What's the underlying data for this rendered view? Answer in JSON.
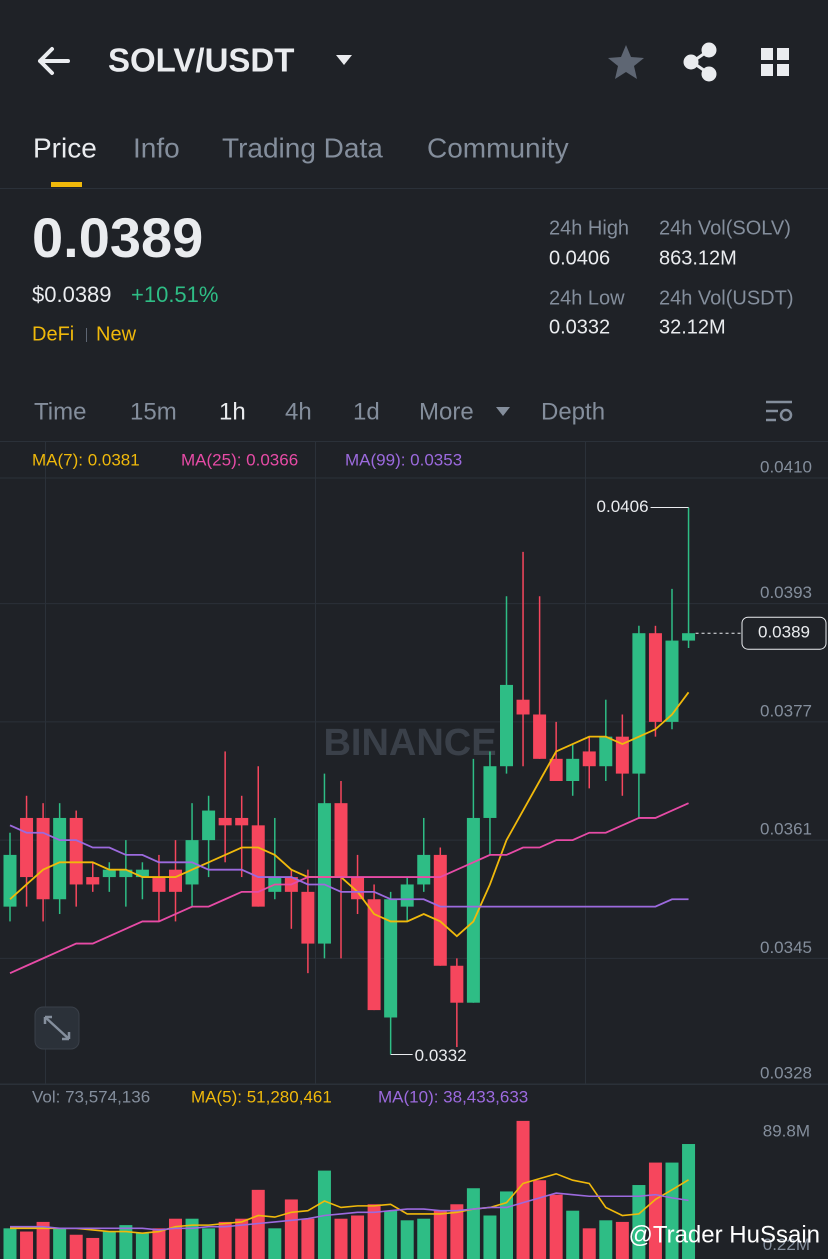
{
  "header": {
    "title": "SOLV/USDT"
  },
  "tabs": [
    "Price",
    "Info",
    "Trading Data",
    "Community"
  ],
  "price": {
    "last": "0.0389",
    "usd": "$0.0389",
    "change": "+10.51%",
    "tags": [
      "DeFi",
      "New"
    ]
  },
  "stats": [
    {
      "label": "24h High",
      "value": "0.0406"
    },
    {
      "label": "24h Vol(SOLV)",
      "value": "863.12M"
    },
    {
      "label": "24h Low",
      "value": "0.0332"
    },
    {
      "label": "24h Vol(USDT)",
      "value": "32.12M"
    }
  ],
  "intervals": [
    "Time",
    "15m",
    "1h",
    "4h",
    "1d",
    "More",
    "Depth"
  ],
  "logo_watermark": "BINANCE",
  "watermark": "@Trader HuSsain",
  "chart_data": [
    {
      "type": "candlestick",
      "up_color": "#2ebd85",
      "down_color": "#f6465d",
      "open": [
        0.0352,
        0.0364,
        0.0364,
        0.0353,
        0.0364,
        0.0356,
        0.0356,
        0.0356,
        0.0356,
        0.0356,
        0.0357,
        0.0355,
        0.0361,
        0.0364,
        0.0364,
        0.0363,
        0.0354,
        0.0356,
        0.0354,
        0.0347,
        0.0366,
        0.0356,
        0.0353,
        0.0337,
        0.0352,
        0.0355,
        0.0359,
        0.0344,
        0.0339,
        0.0364,
        0.0371,
        0.038,
        0.0378,
        0.0372,
        0.0369,
        0.0373,
        0.0371,
        0.0375,
        0.037,
        0.0389,
        0.0377,
        0.0388
      ],
      "high": [
        0.0362,
        0.0367,
        0.0366,
        0.0366,
        0.0365,
        0.0358,
        0.0358,
        0.0361,
        0.0358,
        0.0359,
        0.0361,
        0.0366,
        0.0367,
        0.0373,
        0.0367,
        0.0371,
        0.0364,
        0.0357,
        0.0357,
        0.037,
        0.0369,
        0.0359,
        0.0355,
        0.0354,
        0.0356,
        0.0364,
        0.036,
        0.0345,
        0.0372,
        0.0373,
        0.0394,
        0.04,
        0.0394,
        0.0377,
        0.0374,
        0.0375,
        0.038,
        0.0378,
        0.039,
        0.039,
        0.0395,
        0.0406
      ],
      "low": [
        0.035,
        0.0352,
        0.035,
        0.0351,
        0.0352,
        0.0354,
        0.0354,
        0.0352,
        0.0353,
        0.035,
        0.035,
        0.0352,
        0.0356,
        0.0358,
        0.0356,
        0.0352,
        0.0353,
        0.0349,
        0.0343,
        0.0345,
        0.0345,
        0.0351,
        0.0338,
        0.0332,
        0.035,
        0.0354,
        0.0344,
        0.0333,
        0.0339,
        0.0359,
        0.037,
        0.0371,
        0.0372,
        0.0369,
        0.0367,
        0.0368,
        0.0369,
        0.0367,
        0.0364,
        0.0375,
        0.0376,
        0.0387
      ],
      "close": [
        0.0359,
        0.0356,
        0.0353,
        0.0364,
        0.0355,
        0.0355,
        0.0357,
        0.0357,
        0.0357,
        0.0354,
        0.0354,
        0.0361,
        0.0365,
        0.0363,
        0.0363,
        0.0352,
        0.0356,
        0.0354,
        0.0347,
        0.0366,
        0.0356,
        0.0353,
        0.0338,
        0.0353,
        0.0355,
        0.0359,
        0.0344,
        0.0339,
        0.0364,
        0.0371,
        0.0382,
        0.0378,
        0.0372,
        0.0369,
        0.0372,
        0.0371,
        0.0375,
        0.037,
        0.0389,
        0.0377,
        0.0388,
        0.0389
      ],
      "series": [
        {
          "name": "MA(7): 0.0381",
          "color": "#f0b90b",
          "values": [
            0.0353,
            0.0355,
            0.0357,
            0.0358,
            0.0358,
            0.0358,
            0.0357,
            0.0357,
            0.0356,
            0.0356,
            0.0356,
            0.0357,
            0.0358,
            0.0359,
            0.036,
            0.036,
            0.0359,
            0.0357,
            0.0356,
            0.0356,
            0.0356,
            0.0354,
            0.0351,
            0.035,
            0.035,
            0.0351,
            0.035,
            0.0348,
            0.035,
            0.0355,
            0.0361,
            0.0365,
            0.0369,
            0.0373,
            0.0374,
            0.0375,
            0.0375,
            0.0374,
            0.0375,
            0.0376,
            0.0378,
            0.0381
          ]
        },
        {
          "name": "MA(25): 0.0366",
          "color": "#e74ba6",
          "values": [
            0.0343,
            0.0344,
            0.0345,
            0.0346,
            0.0347,
            0.0347,
            0.0348,
            0.0349,
            0.035,
            0.035,
            0.0351,
            0.0352,
            0.0352,
            0.0353,
            0.0354,
            0.0354,
            0.0355,
            0.0355,
            0.0356,
            0.0356,
            0.0356,
            0.0356,
            0.0356,
            0.0356,
            0.0356,
            0.0356,
            0.0356,
            0.0357,
            0.0358,
            0.0359,
            0.0359,
            0.036,
            0.036,
            0.0361,
            0.0361,
            0.0362,
            0.0362,
            0.0363,
            0.0364,
            0.0364,
            0.0365,
            0.0366
          ]
        },
        {
          "name": "MA(99): 0.0353",
          "color": "#9c6ade",
          "values": [
            0.0363,
            0.0362,
            0.0362,
            0.0361,
            0.0361,
            0.036,
            0.036,
            0.0359,
            0.0359,
            0.0358,
            0.0358,
            0.0358,
            0.0357,
            0.0357,
            0.0357,
            0.0356,
            0.0356,
            0.0356,
            0.0355,
            0.0355,
            0.0354,
            0.0354,
            0.0354,
            0.0353,
            0.0353,
            0.0353,
            0.0352,
            0.0352,
            0.0352,
            0.0352,
            0.0352,
            0.0352,
            0.0352,
            0.0352,
            0.0352,
            0.0352,
            0.0352,
            0.0352,
            0.0352,
            0.0352,
            0.0353,
            0.0353
          ]
        }
      ],
      "ylim": [
        0.0328,
        0.041
      ],
      "yticks": [
        {
          "value": 0.041,
          "label": "0.0410"
        },
        0.0393,
        0.0377,
        0.0361,
        0.0345,
        0.0328
      ],
      "grid": true
    },
    {
      "type": "bar",
      "volume_label": "Vol: 73,574,136",
      "values": [
        21,
        19,
        25,
        21,
        17,
        15,
        19,
        23,
        18,
        21,
        27,
        27,
        21,
        25,
        27,
        45,
        21,
        39,
        27,
        57,
        27,
        29,
        36,
        32,
        26,
        27,
        32,
        36,
        46,
        29,
        44,
        88,
        51,
        42,
        32,
        21,
        26,
        25,
        48,
        62,
        62,
        73.574136
      ],
      "series": [
        {
          "name": "MA(5): 51,280,461",
          "color": "#f0b90b",
          "values": [
            21,
            21,
            21,
            21,
            21,
            20,
            19,
            19,
            18,
            19,
            22,
            23,
            23,
            24,
            25,
            29,
            28,
            31,
            32,
            38,
            34,
            35,
            35,
            36,
            30,
            30,
            30,
            31,
            33,
            34,
            37,
            49,
            52,
            55,
            51,
            49,
            34,
            29,
            30,
            39,
            45,
            51.280461
          ]
        },
        {
          "name": "MA(10): 38,433,633",
          "color": "#9c6ade",
          "values": [
            22,
            22,
            22,
            21,
            21,
            21,
            21,
            21,
            21,
            20,
            21,
            21,
            22,
            22,
            23,
            24,
            25,
            26,
            27,
            29,
            30,
            31,
            31,
            32,
            33,
            33,
            32,
            32,
            33,
            34,
            34,
            37,
            40,
            43,
            42,
            41,
            41,
            41,
            41,
            42,
            40,
            38.433633
          ]
        }
      ],
      "ylim": [
        0,
        89.8
      ],
      "yticks": [
        {
          "value": 89.8,
          "label": "89.8M"
        },
        {
          "value": 0.22,
          "label": "0.22M"
        }
      ]
    }
  ]
}
